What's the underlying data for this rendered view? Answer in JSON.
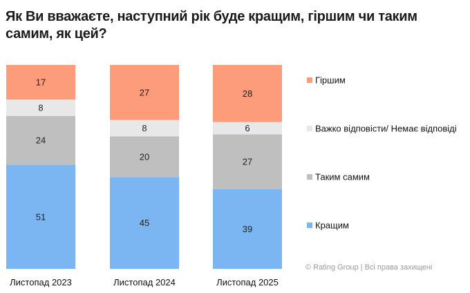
{
  "chart_data": {
    "type": "bar",
    "stacked": true,
    "title": "Як Ви вважаєте, наступний рік буде кращим, гіршим чи таким самим, як цей?",
    "categories": [
      "Листопад 2023",
      "Листопад 2024",
      "Листопад 2025"
    ],
    "series": [
      {
        "name": "Кращим",
        "color": "#7BB6F2",
        "values": [
          51,
          45,
          39
        ]
      },
      {
        "name": "Таким самим",
        "color": "#BFBFBF",
        "values": [
          24,
          20,
          27
        ]
      },
      {
        "name": "Важко відповісти/ Немає відповіді",
        "color": "#E8E8E8",
        "values": [
          8,
          8,
          6
        ]
      },
      {
        "name": "Гіршим",
        "color": "#FC9C7A",
        "values": [
          17,
          27,
          28
        ]
      }
    ],
    "legend_order": [
      "Гіршим",
      "Важко відповісти/ Немає відповіді",
      "Таким самим",
      "Кращим"
    ],
    "legend_position": "right",
    "ylim": [
      0,
      100
    ],
    "xlabel": "",
    "ylabel": "",
    "grid": false,
    "annotation": "© Rating Group | Всі права захищені"
  }
}
